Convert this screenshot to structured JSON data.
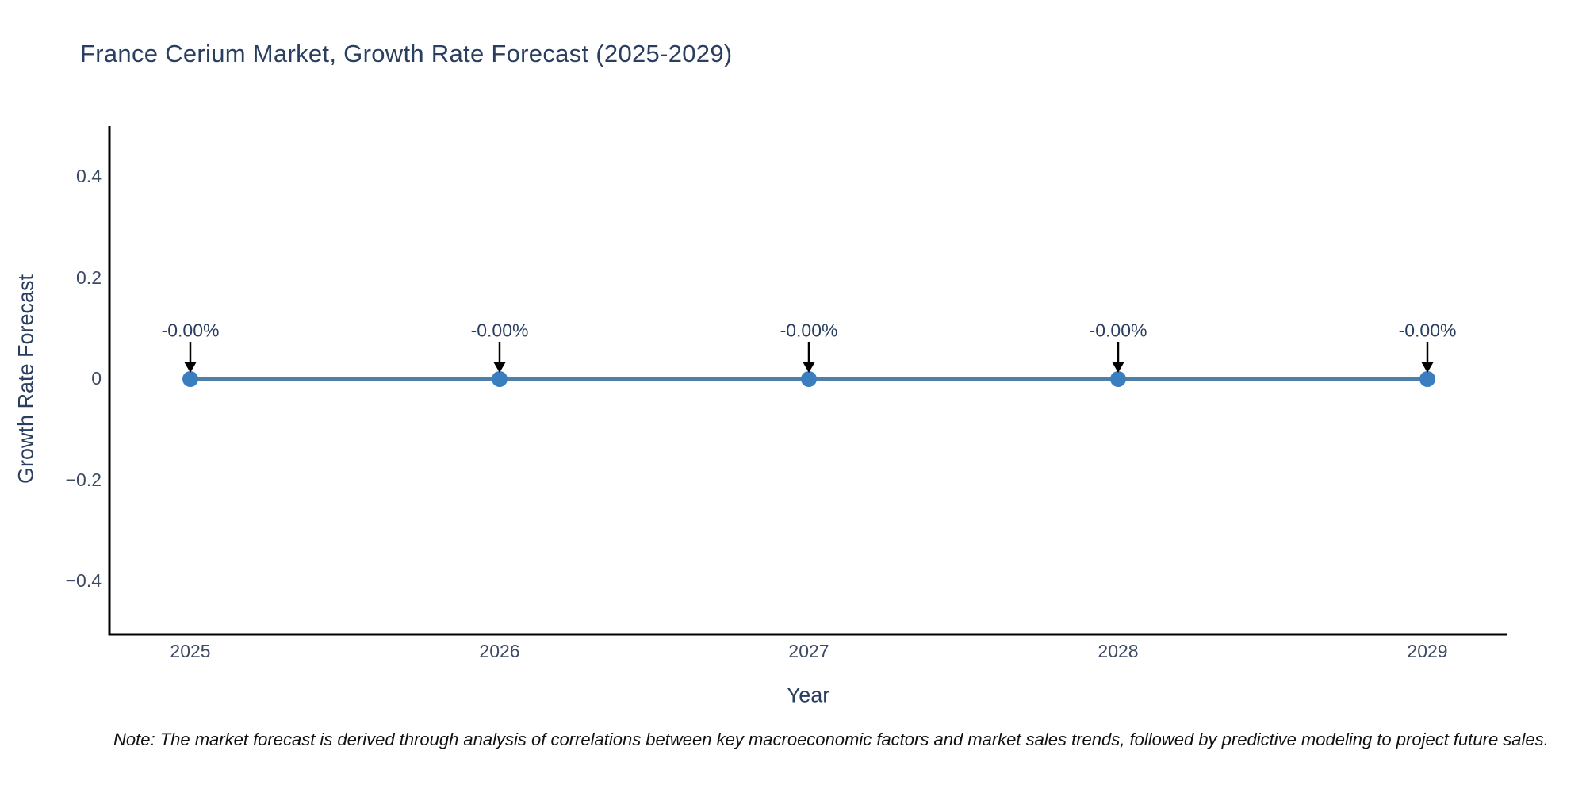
{
  "title": "France Cerium Market, Growth Rate Forecast (2025-2029)",
  "note": "Note: The market forecast is derived through analysis of correlations between key macroeconomic factors and market sales trends, followed by predictive modeling to project future sales.",
  "chart_data": {
    "type": "line",
    "title": "France Cerium Market, Growth Rate Forecast (2025-2029)",
    "categories": [
      "2025",
      "2026",
      "2027",
      "2028",
      "2029"
    ],
    "series": [
      {
        "name": "Growth Rate Forecast",
        "values": [
          0,
          0,
          0,
          0,
          0
        ]
      }
    ],
    "point_labels": [
      "-0.00%",
      "-0.00%",
      "-0.00%",
      "-0.00%",
      "-0.00%"
    ],
    "xlabel": "Year",
    "ylabel": "Growth Rate Forecast",
    "ylim": [
      -0.5,
      0.5
    ],
    "yticks": [
      0.4,
      0.2,
      0,
      -0.2,
      -0.4
    ],
    "ytick_labels": [
      "0.4",
      "0.2",
      "0",
      "−0.2",
      "−0.4"
    ],
    "grid": false,
    "legend_visible": false,
    "line_color": "#4f7ea7",
    "marker_color": "#3a7ebf",
    "axis_color": "#000000",
    "arrow_color": "#000000",
    "title_color": "#2a3f5f",
    "tick_color": "#3d4a63",
    "background_color": "#ffffff"
  }
}
